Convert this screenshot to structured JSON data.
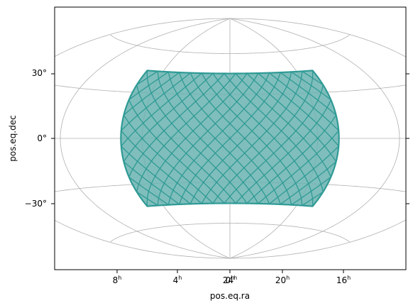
{
  "chart_data": {
    "type": "map",
    "projection": "Hammer-Aitoff (all-sky)",
    "xlabel": "pos.eq.ra",
    "ylabel": "pos.eq.dec",
    "x_ticks": [
      {
        "value_hours": 8,
        "label": "8",
        "sup": "h"
      },
      {
        "value_hours": 4,
        "label": "4",
        "sup": "h"
      },
      {
        "value_hours": 0,
        "label": "0",
        "sup": "h"
      },
      {
        "value_hours": 24,
        "label": "24",
        "sup": "h"
      },
      {
        "value_hours": 20,
        "label": "20",
        "sup": "h"
      },
      {
        "value_hours": 16,
        "label": "16",
        "sup": "h"
      }
    ],
    "y_ticks": [
      {
        "value_deg": 30,
        "label": "30°"
      },
      {
        "value_deg": 0,
        "label": "0°"
      },
      {
        "value_deg": -30,
        "label": "−30°"
      }
    ],
    "grid": true,
    "coverage": {
      "ra_range_deg": [
        -75,
        75
      ],
      "dec_range_deg": [
        -45,
        45
      ],
      "fill": "#69b3b0",
      "edge": "#2f9a95"
    },
    "colors": {
      "grid": "#b0b0b0",
      "frame": "#000000"
    }
  }
}
